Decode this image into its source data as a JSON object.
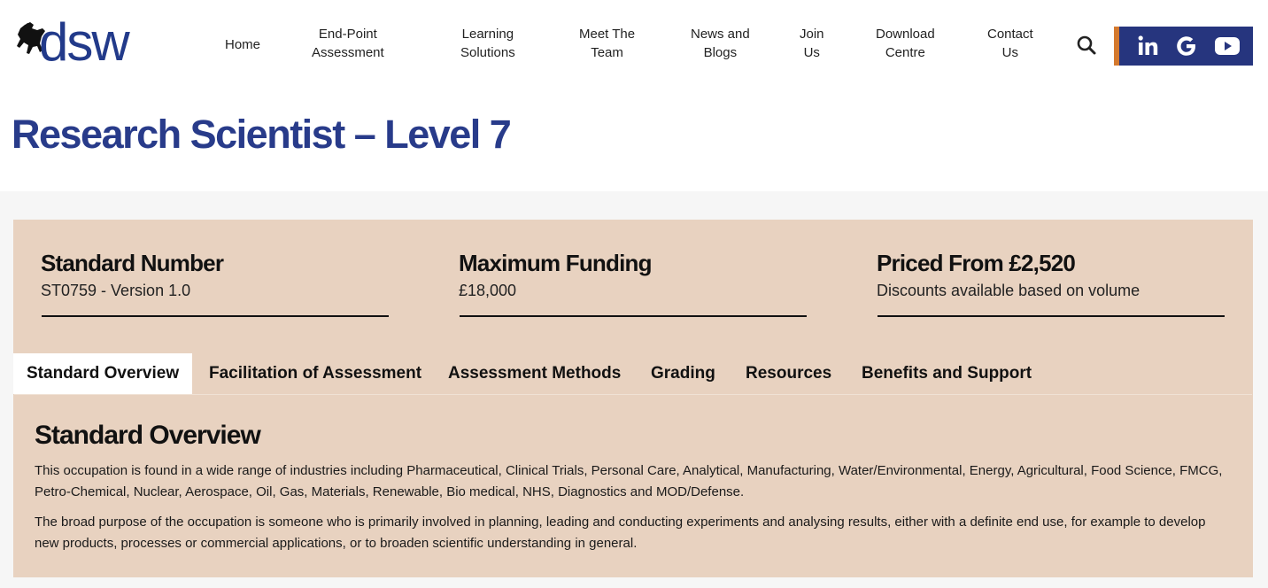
{
  "header": {
    "logo_text": "dsw",
    "nav": [
      {
        "label": "Home"
      },
      {
        "label": "End-Point\nAssessment"
      },
      {
        "label": "Learning\nSolutions"
      },
      {
        "label": "Meet The\nTeam"
      },
      {
        "label": "News and\nBlogs"
      },
      {
        "label": "Join\nUs"
      },
      {
        "label": "Download\nCentre"
      },
      {
        "label": "Contact\nUs"
      }
    ],
    "icons": [
      "search-icon",
      "linkedin-icon",
      "google-icon",
      "youtube-icon"
    ],
    "social_accent": "#d4792e",
    "social_bg": "#26357e"
  },
  "page": {
    "title": "Research Scientist – Level 7",
    "title_color": "#283b8a"
  },
  "facts": [
    {
      "label": "Standard Number",
      "value": "ST0759 - Version 1.0"
    },
    {
      "label": "Maximum Funding",
      "value": "£18,000"
    },
    {
      "label": "Priced From £2,520",
      "value": "Discounts available based on volume"
    }
  ],
  "tabs": [
    {
      "label": "Standard Overview",
      "active": true
    },
    {
      "label": "Facilitation of Assessment"
    },
    {
      "label": "Assessment Methods"
    },
    {
      "label": "Grading"
    },
    {
      "label": "Resources"
    },
    {
      "label": "Benefits and Support"
    }
  ],
  "overview": {
    "title": "Standard Overview",
    "paragraphs": [
      "This occupation is found in a wide range of industries including Pharmaceutical, Clinical Trials, Personal Care, Analytical, Manufacturing, Water/Environmental, Energy, Agricultural, Food Science, FMCG, Petro-Chemical, Nuclear, Aerospace, Oil, Gas, Materials, Renewable, Bio medical, NHS, Diagnostics and MOD/Defense.",
      "The broad purpose of the occupation is someone who is primarily involved in planning, leading and conducting experiments and analysing results, either with a definite end use, for example to develop new products, processes or commercial applications, or to broaden scientific understanding in general."
    ]
  },
  "colors": {
    "panel": "#e8d2c0",
    "band": "#f6f6f6"
  }
}
